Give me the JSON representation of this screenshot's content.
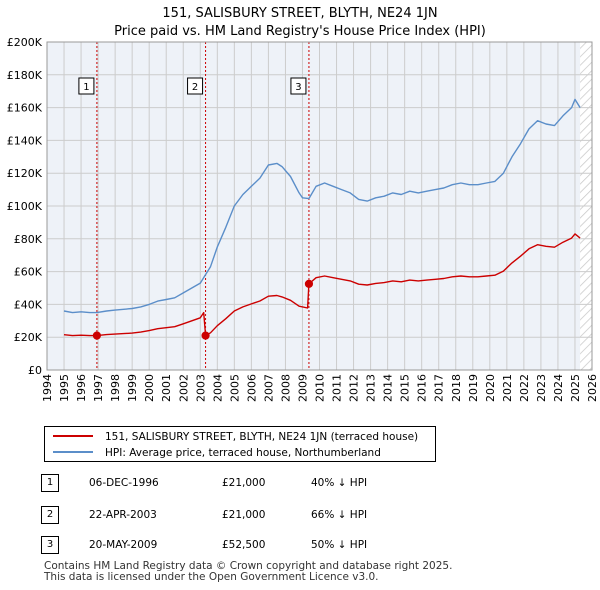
{
  "title": "151, SALISBURY STREET, BLYTH, NE24 1JN",
  "subtitle": "Price paid vs. HM Land Registry's House Price Index (HPI)",
  "colors": {
    "property": "#cc0000",
    "hpi": "#5b8ec9",
    "grid": "#cccccc",
    "plot_bg": "#eef2f8",
    "marker_line": "#cc0000"
  },
  "legend": [
    {
      "label": "151, SALISBURY STREET, BLYTH, NE24 1JN (terraced house)",
      "color": "#cc0000"
    },
    {
      "label": "HPI: Average price, terraced house, Northumberland",
      "color": "#5b8ec9"
    }
  ],
  "transactions": [
    {
      "num": "1",
      "date": "06-DEC-1996",
      "price": "£21,000",
      "hpi": "40% ↓ HPI"
    },
    {
      "num": "2",
      "date": "22-APR-2003",
      "price": "£21,000",
      "hpi": "66% ↓ HPI"
    },
    {
      "num": "3",
      "date": "20-MAY-2009",
      "price": "£52,500",
      "hpi": "50% ↓ HPI"
    }
  ],
  "footer": [
    "Contains HM Land Registry data © Crown copyright and database right 2025.",
    "This data is licensed under the Open Government Licence v3.0."
  ],
  "chart_data": {
    "type": "line",
    "title": "151, SALISBURY STREET, BLYTH, NE24 1JN",
    "subtitle": "Price paid vs. HM Land Registry's House Price Index (HPI)",
    "xlim": [
      1994,
      2026
    ],
    "ylim": [
      0,
      200000
    ],
    "x_ticks": [
      1994,
      1995,
      1996,
      1997,
      1998,
      1999,
      2000,
      2001,
      2002,
      2003,
      2004,
      2005,
      2006,
      2007,
      2008,
      2009,
      2010,
      2011,
      2012,
      2013,
      2014,
      2015,
      2016,
      2017,
      2018,
      2019,
      2020,
      2021,
      2022,
      2023,
      2024,
      2025,
      2026
    ],
    "y_ticks": [
      0,
      20000,
      40000,
      60000,
      80000,
      100000,
      120000,
      140000,
      160000,
      180000,
      200000
    ],
    "y_tick_labels": [
      "£0",
      "£20K",
      "£40K",
      "£60K",
      "£80K",
      "£100K",
      "£120K",
      "£140K",
      "£160K",
      "£180K",
      "£200K"
    ],
    "grid": true,
    "future_hatch_from": 2025.3,
    "series": [
      {
        "name": "HPI: Average price, terraced house, Northumberland",
        "color": "#5b8ec9",
        "x": [
          1995.0,
          1995.5,
          1996.0,
          1996.5,
          1996.93,
          1997.5,
          1998.0,
          1998.5,
          1999.0,
          1999.5,
          2000.0,
          2000.5,
          2001.0,
          2001.5,
          2002.0,
          2002.5,
          2003.0,
          2003.3,
          2003.6,
          2004.0,
          2004.5,
          2005.0,
          2005.5,
          2006.0,
          2006.5,
          2007.0,
          2007.5,
          2007.8,
          2008.3,
          2008.8,
          2009.0,
          2009.38,
          2009.8,
          2010.3,
          2010.8,
          2011.3,
          2011.8,
          2012.3,
          2012.8,
          2013.3,
          2013.8,
          2014.3,
          2014.8,
          2015.3,
          2015.8,
          2016.3,
          2016.8,
          2017.3,
          2017.8,
          2018.3,
          2018.8,
          2019.3,
          2019.8,
          2020.3,
          2020.8,
          2021.3,
          2021.8,
          2022.3,
          2022.8,
          2023.3,
          2023.8,
          2024.3,
          2024.8,
          2025.0,
          2025.3
        ],
        "y": [
          36000,
          35000,
          35500,
          35000,
          35000,
          36000,
          36500,
          37000,
          37500,
          38500,
          40000,
          42000,
          43000,
          44000,
          47000,
          50000,
          53000,
          58000,
          63000,
          75000,
          87000,
          100000,
          107000,
          112000,
          117000,
          125000,
          126000,
          124000,
          118000,
          108000,
          105000,
          104500,
          112000,
          114000,
          112000,
          110000,
          108000,
          104000,
          103000,
          105000,
          106000,
          108000,
          107000,
          109000,
          108000,
          109000,
          110000,
          111000,
          113000,
          114000,
          113000,
          113000,
          114000,
          115000,
          120000,
          130000,
          138000,
          147000,
          152000,
          150000,
          149000,
          155000,
          160000,
          165000,
          160000
        ]
      },
      {
        "name": "151, SALISBURY STREET, BLYTH, NE24 1JN (terraced house)",
        "color": "#cc0000",
        "x": [
          1995.0,
          1995.5,
          1996.0,
          1996.5,
          1996.93,
          1997.5,
          1998.0,
          1998.5,
          1999.0,
          1999.5,
          2000.0,
          2000.5,
          2001.0,
          2001.5,
          2002.0,
          2002.5,
          2003.0,
          2003.2,
          2003.31,
          2003.6,
          2004.0,
          2004.5,
          2005.0,
          2005.5,
          2006.0,
          2006.5,
          2007.0,
          2007.5,
          2007.8,
          2008.3,
          2008.8,
          2009.3,
          2009.38,
          2009.8,
          2010.3,
          2010.8,
          2011.3,
          2011.8,
          2012.3,
          2012.8,
          2013.3,
          2013.8,
          2014.3,
          2014.8,
          2015.3,
          2015.8,
          2016.3,
          2016.8,
          2017.3,
          2017.8,
          2018.3,
          2018.8,
          2019.3,
          2019.8,
          2020.3,
          2020.8,
          2021.3,
          2021.8,
          2022.3,
          2022.8,
          2023.3,
          2023.8,
          2024.3,
          2024.8,
          2025.0,
          2025.3
        ],
        "y": [
          21500,
          21000,
          21200,
          21000,
          21000,
          21600,
          21900,
          22200,
          22500,
          23100,
          24000,
          25200,
          25800,
          26400,
          28200,
          30000,
          31800,
          35000,
          21000,
          22700,
          27000,
          31300,
          36000,
          38500,
          40300,
          42100,
          45000,
          45400,
          44600,
          42500,
          38900,
          37800,
          52500,
          56300,
          57300,
          56300,
          55300,
          54300,
          52300,
          51800,
          52800,
          53300,
          54300,
          53800,
          54800,
          54300,
          54800,
          55300,
          55800,
          56800,
          57300,
          56800,
          56800,
          57300,
          57800,
          60300,
          65300,
          69400,
          73900,
          76400,
          75400,
          74900,
          77900,
          80400,
          83000,
          80400
        ]
      }
    ],
    "sales": [
      {
        "label": "1",
        "date": "06-DEC-1996",
        "x": 1996.93,
        "price": 21000
      },
      {
        "label": "2",
        "date": "22-APR-2003",
        "x": 2003.31,
        "price": 21000
      },
      {
        "label": "3",
        "date": "20-MAY-2009",
        "x": 2009.38,
        "price": 52500
      }
    ]
  }
}
